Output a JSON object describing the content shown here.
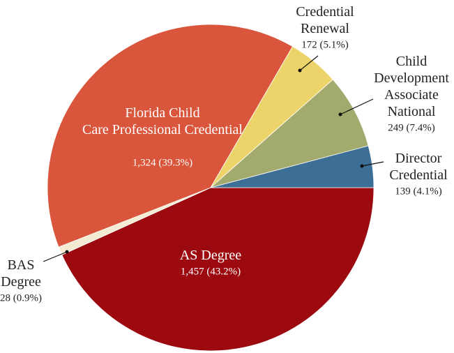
{
  "chart_data": {
    "type": "pie",
    "categories": [
      "AS Degree",
      "BAS Degree",
      "Florida Child Care Professional Credential",
      "Credential Renewal",
      "Child Development Associate National",
      "Director Credential"
    ],
    "values": [
      1457,
      28,
      1324,
      172,
      249,
      139
    ],
    "value_labels": [
      "1,457 (43.2%)",
      "28 (0.9%)",
      "1,324 (39.3%)",
      "172 (5.1%)",
      "249 (7.4%)",
      "139 (4.1%)"
    ],
    "colors": [
      "#9c0a10",
      "#f3ecd2",
      "#d9553b",
      "#ecd46a",
      "#a3aa6e",
      "#3d6e96"
    ]
  }
}
